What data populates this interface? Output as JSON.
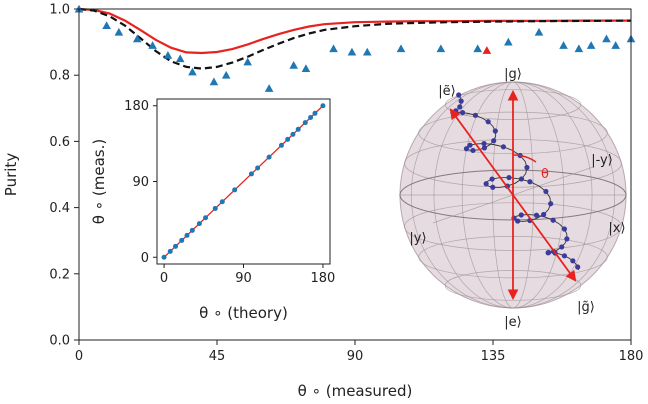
{
  "chart_data": [
    {
      "type": "line",
      "xlabel": "θ ∘ (measured)",
      "ylabel": "Purity",
      "xlim": [
        0,
        180
      ],
      "ylim": [
        0.0,
        1.0
      ],
      "xticks": [
        "0",
        "45",
        "90",
        "135",
        "180"
      ],
      "yticks": [
        "0.0",
        "0.2",
        "0.4",
        "0.6",
        "0.8",
        "1.0"
      ],
      "series": [
        {
          "style": "solid",
          "color": "#e8231f",
          "x": [
            0,
            5,
            10,
            15,
            20,
            25,
            30,
            35,
            40,
            45,
            50,
            55,
            60,
            65,
            70,
            75,
            80,
            90,
            100,
            110,
            120,
            135,
            150,
            165,
            180
          ],
          "y": [
            1.0,
            0.997,
            0.986,
            0.965,
            0.937,
            0.907,
            0.883,
            0.869,
            0.867,
            0.87,
            0.879,
            0.893,
            0.909,
            0.924,
            0.937,
            0.947,
            0.954,
            0.96,
            0.962,
            0.963,
            0.963,
            0.964,
            0.964,
            0.965,
            0.965
          ]
        },
        {
          "style": "dashed",
          "color": "#111111",
          "x": [
            0,
            5,
            10,
            15,
            20,
            25,
            30,
            35,
            40,
            45,
            50,
            55,
            60,
            65,
            70,
            75,
            80,
            90,
            100,
            110,
            120,
            135,
            150,
            165,
            180
          ],
          "y": [
            1.0,
            0.995,
            0.978,
            0.95,
            0.912,
            0.873,
            0.842,
            0.825,
            0.82,
            0.825,
            0.838,
            0.856,
            0.876,
            0.895,
            0.912,
            0.926,
            0.937,
            0.948,
            0.955,
            0.958,
            0.96,
            0.962,
            0.963,
            0.964,
            0.965
          ]
        },
        {
          "style": "markers",
          "marker": "triangle",
          "color": "#1f77b4",
          "x": [
            0,
            9,
            13,
            19,
            24,
            29,
            33,
            37,
            44,
            48,
            55,
            62,
            70,
            74,
            83,
            89,
            94,
            105,
            118,
            130,
            140,
            150,
            158,
            163,
            167,
            172,
            175,
            180
          ],
          "y": [
            1.0,
            0.95,
            0.93,
            0.91,
            0.89,
            0.86,
            0.85,
            0.81,
            0.78,
            0.8,
            0.84,
            0.76,
            0.83,
            0.82,
            0.88,
            0.87,
            0.87,
            0.88,
            0.88,
            0.88,
            0.9,
            0.93,
            0.89,
            0.88,
            0.89,
            0.91,
            0.89,
            0.91
          ]
        },
        {
          "style": "markers",
          "marker": "triangle",
          "color": "#e8231f",
          "x": [
            133
          ],
          "y": [
            0.875
          ]
        }
      ]
    },
    {
      "type": "scatter",
      "xlabel": "θ ∘ (theory)",
      "ylabel": "θ ∘ (meas.)",
      "xlim": [
        -8,
        188
      ],
      "ylim": [
        -8,
        188
      ],
      "xticks": [
        "0",
        "90",
        "180"
      ],
      "yticks": [
        "0",
        "90",
        "180"
      ],
      "series": [
        {
          "style": "line",
          "color": "#e8231f",
          "x": [
            0,
            180
          ],
          "y": [
            0,
            180
          ]
        },
        {
          "style": "markers",
          "marker": "circle",
          "color": "#1f77b4",
          "x": [
            0,
            7,
            13,
            20,
            26,
            32,
            40,
            47,
            58,
            66,
            80,
            99,
            106,
            119,
            133,
            140,
            146,
            152,
            160,
            166,
            171,
            180
          ],
          "y": [
            0,
            7,
            13,
            20,
            26,
            32,
            40,
            47,
            58,
            66,
            80,
            99,
            106,
            119,
            133,
            140,
            146,
            152,
            160,
            166,
            171,
            180
          ]
        }
      ]
    }
  ],
  "bloch": {
    "labels": {
      "g": "|g⟩",
      "e": "|e⟩",
      "e_tilde": "|ẽ⟩",
      "g_tilde": "|g̃⟩",
      "x": "|x⟩",
      "y": "|y⟩",
      "neg_y": "|-y⟩",
      "theta": "θ"
    },
    "colors": {
      "sphere": "#d9c7cf",
      "axis": "#e8231f",
      "trajectory": "#3b3b9c"
    }
  }
}
